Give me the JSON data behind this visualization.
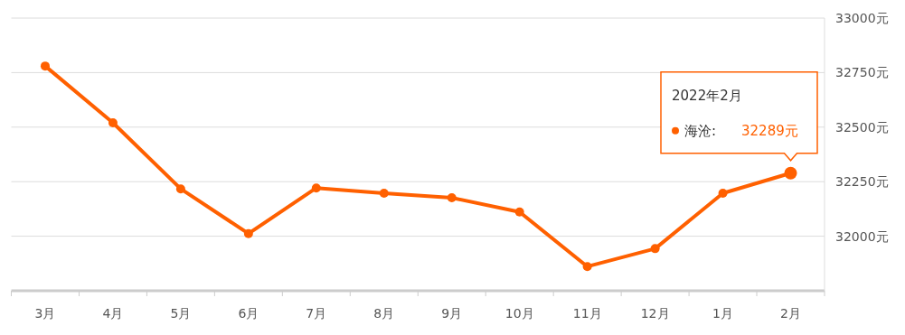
{
  "chart_data": {
    "type": "line",
    "categories": [
      "3月",
      "4月",
      "5月",
      "6月",
      "7月",
      "8月",
      "9月",
      "10月",
      "11月",
      "12月",
      "1月",
      "2月"
    ],
    "series": [
      {
        "name": "海沧:",
        "color": "#ff6000",
        "values": [
          32780,
          32520,
          32217,
          32012,
          32221,
          32197,
          32176,
          32111,
          31861,
          31943,
          32197,
          32289
        ],
        "value_labels": [
          null,
          null,
          null,
          null,
          null,
          null,
          null,
          null,
          null,
          null,
          null,
          "32289元"
        ]
      }
    ],
    "ylim": [
      31750,
      33000
    ],
    "yticks": [
      {
        "value": 32000,
        "label": "32000元"
      },
      {
        "value": 32250,
        "label": "32250元"
      },
      {
        "value": 32500,
        "label": "32500元"
      },
      {
        "value": 32750,
        "label": "32750元"
      },
      {
        "value": 33000,
        "label": "33000元"
      }
    ],
    "grid": "y",
    "marker": "circle",
    "line_style": "solid",
    "annotations": [
      "2022年2月"
    ]
  }
}
